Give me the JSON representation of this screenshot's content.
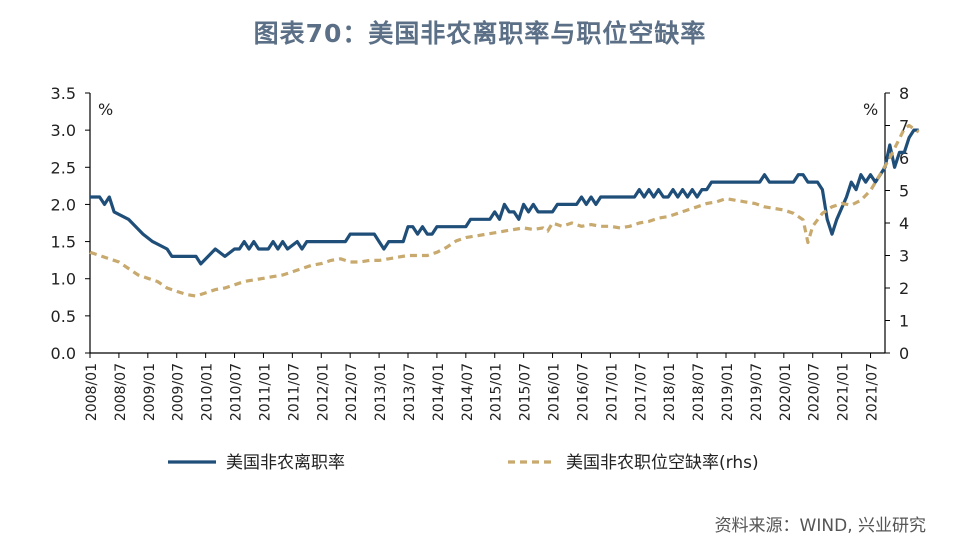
{
  "title": "图表70：美国非农离职率与职位空缺率",
  "source": "资料来源：WIND, 兴业研究",
  "colors": {
    "series1": "#1f4e79",
    "series2": "#c8a96e",
    "axis": "#000000",
    "title": "#5b6f86"
  },
  "chart_data": {
    "type": "line",
    "title": "图表70：美国非农离职率与职位空缺率",
    "left_unit": "%",
    "right_unit": "%",
    "ylim_left": [
      0,
      3.5
    ],
    "yticks_left": [
      "0.0",
      "0.5",
      "1.0",
      "1.5",
      "2.0",
      "2.5",
      "3.0",
      "3.5"
    ],
    "ylim_right": [
      0,
      8
    ],
    "yticks_right": [
      "0",
      "1",
      "2",
      "3",
      "4",
      "5",
      "6",
      "7",
      "8"
    ],
    "x_start": "2008/01",
    "x_end": "2021/10",
    "xticks": [
      "2008/01",
      "2008/07",
      "2009/01",
      "2009/07",
      "2010/01",
      "2010/07",
      "2011/01",
      "2011/07",
      "2012/01",
      "2012/07",
      "2013/01",
      "2013/07",
      "2014/01",
      "2014/07",
      "2015/01",
      "2015/07",
      "2016/01",
      "2016/07",
      "2017/01",
      "2017/07",
      "2018/01",
      "2018/07",
      "2019/01",
      "2019/07",
      "2020/01",
      "2020/07",
      "2021/01",
      "2021/07"
    ],
    "grid": false,
    "legend_position": "bottom",
    "series": [
      {
        "name": "美国非农离职率",
        "axis": "left",
        "style": "solid",
        "points": [
          [
            "2008/01",
            2.1
          ],
          [
            "2008/03",
            2.1
          ],
          [
            "2008/04",
            2.0
          ],
          [
            "2008/05",
            2.1
          ],
          [
            "2008/06",
            1.9
          ],
          [
            "2008/09",
            1.8
          ],
          [
            "2008/12",
            1.6
          ],
          [
            "2009/02",
            1.5
          ],
          [
            "2009/05",
            1.4
          ],
          [
            "2009/06",
            1.3
          ],
          [
            "2009/11",
            1.3
          ],
          [
            "2009/12",
            1.2
          ],
          [
            "2010/03",
            1.4
          ],
          [
            "2010/05",
            1.3
          ],
          [
            "2010/07",
            1.4
          ],
          [
            "2010/08",
            1.4
          ],
          [
            "2010/09",
            1.5
          ],
          [
            "2010/10",
            1.4
          ],
          [
            "2010/11",
            1.5
          ],
          [
            "2010/12",
            1.4
          ],
          [
            "2011/02",
            1.4
          ],
          [
            "2011/03",
            1.5
          ],
          [
            "2011/04",
            1.4
          ],
          [
            "2011/05",
            1.5
          ],
          [
            "2011/06",
            1.4
          ],
          [
            "2011/08",
            1.5
          ],
          [
            "2011/09",
            1.4
          ],
          [
            "2011/10",
            1.5
          ],
          [
            "2012/06",
            1.5
          ],
          [
            "2012/07",
            1.6
          ],
          [
            "2012/12",
            1.6
          ],
          [
            "2013/01",
            1.5
          ],
          [
            "2013/02",
            1.4
          ],
          [
            "2013/03",
            1.5
          ],
          [
            "2013/06",
            1.5
          ],
          [
            "2013/07",
            1.7
          ],
          [
            "2013/08",
            1.7
          ],
          [
            "2013/09",
            1.6
          ],
          [
            "2013/10",
            1.7
          ],
          [
            "2013/11",
            1.6
          ],
          [
            "2013/12",
            1.6
          ],
          [
            "2014/01",
            1.7
          ],
          [
            "2014/07",
            1.7
          ],
          [
            "2014/08",
            1.8
          ],
          [
            "2014/12",
            1.8
          ],
          [
            "2015/01",
            1.9
          ],
          [
            "2015/02",
            1.8
          ],
          [
            "2015/03",
            2.0
          ],
          [
            "2015/04",
            1.9
          ],
          [
            "2015/05",
            1.9
          ],
          [
            "2015/06",
            1.8
          ],
          [
            "2015/07",
            2.0
          ],
          [
            "2015/08",
            1.9
          ],
          [
            "2015/09",
            2.0
          ],
          [
            "2015/10",
            1.9
          ],
          [
            "2015/11",
            1.9
          ],
          [
            "2016/01",
            1.9
          ],
          [
            "2016/02",
            2.0
          ],
          [
            "2016/06",
            2.0
          ],
          [
            "2016/07",
            2.1
          ],
          [
            "2016/08",
            2.0
          ],
          [
            "2016/09",
            2.1
          ],
          [
            "2016/10",
            2.0
          ],
          [
            "2016/11",
            2.1
          ],
          [
            "2017/06",
            2.1
          ],
          [
            "2017/07",
            2.2
          ],
          [
            "2017/08",
            2.1
          ],
          [
            "2017/09",
            2.2
          ],
          [
            "2017/10",
            2.1
          ],
          [
            "2017/11",
            2.2
          ],
          [
            "2017/12",
            2.1
          ],
          [
            "2018/01",
            2.1
          ],
          [
            "2018/02",
            2.2
          ],
          [
            "2018/03",
            2.1
          ],
          [
            "2018/04",
            2.2
          ],
          [
            "2018/05",
            2.1
          ],
          [
            "2018/06",
            2.2
          ],
          [
            "2018/07",
            2.1
          ],
          [
            "2018/08",
            2.2
          ],
          [
            "2018/09",
            2.2
          ],
          [
            "2018/10",
            2.3
          ],
          [
            "2019/08",
            2.3
          ],
          [
            "2019/09",
            2.4
          ],
          [
            "2019/10",
            2.3
          ],
          [
            "2020/03",
            2.3
          ],
          [
            "2020/04",
            2.4
          ],
          [
            "2020/05",
            2.4
          ],
          [
            "2020/06",
            2.3
          ],
          [
            "2020/08",
            2.3
          ],
          [
            "2020/09",
            2.2
          ],
          [
            "2020/10",
            1.8
          ],
          [
            "2020/11",
            1.6
          ],
          [
            "2020/12",
            1.8
          ],
          [
            "2021/02",
            2.1
          ],
          [
            "2021/03",
            2.3
          ],
          [
            "2021/04",
            2.2
          ],
          [
            "2021/05",
            2.4
          ],
          [
            "2021/06",
            2.3
          ],
          [
            "2021/07",
            2.4
          ],
          [
            "2021/08",
            2.3
          ],
          [
            "2021/09",
            2.4
          ],
          [
            "2021/10",
            2.5
          ],
          [
            "2021/11",
            2.8
          ],
          [
            "2021/12",
            2.5
          ],
          [
            "2022/01",
            2.7
          ],
          [
            "2022/02",
            2.7
          ],
          [
            "2022/03",
            2.9
          ],
          [
            "2022/04",
            3.0
          ],
          [
            "2022/05",
            3.0
          ]
        ]
      },
      {
        "name": "美国非农职位空缺率(rhs)",
        "axis": "right",
        "style": "dashed",
        "points": [
          [
            "2008/01",
            3.1
          ],
          [
            "2008/03",
            3.0
          ],
          [
            "2008/05",
            2.9
          ],
          [
            "2008/07",
            2.8
          ],
          [
            "2008/09",
            2.6
          ],
          [
            "2008/11",
            2.4
          ],
          [
            "2009/01",
            2.3
          ],
          [
            "2009/03",
            2.2
          ],
          [
            "2009/05",
            2.0
          ],
          [
            "2009/07",
            1.9
          ],
          [
            "2009/09",
            1.8
          ],
          [
            "2009/11",
            1.75
          ],
          [
            "2010/01",
            1.85
          ],
          [
            "2010/03",
            1.95
          ],
          [
            "2010/05",
            2.0
          ],
          [
            "2010/07",
            2.1
          ],
          [
            "2010/09",
            2.2
          ],
          [
            "2010/11",
            2.25
          ],
          [
            "2011/01",
            2.3
          ],
          [
            "2011/03",
            2.35
          ],
          [
            "2011/05",
            2.4
          ],
          [
            "2011/07",
            2.5
          ],
          [
            "2011/09",
            2.6
          ],
          [
            "2011/11",
            2.7
          ],
          [
            "2012/01",
            2.75
          ],
          [
            "2012/03",
            2.85
          ],
          [
            "2012/05",
            2.9
          ],
          [
            "2012/07",
            2.8
          ],
          [
            "2012/09",
            2.8
          ],
          [
            "2012/11",
            2.85
          ],
          [
            "2013/01",
            2.85
          ],
          [
            "2013/03",
            2.9
          ],
          [
            "2013/05",
            2.95
          ],
          [
            "2013/07",
            3.0
          ],
          [
            "2013/09",
            3.0
          ],
          [
            "2013/11",
            3.0
          ],
          [
            "2014/01",
            3.1
          ],
          [
            "2014/03",
            3.25
          ],
          [
            "2014/05",
            3.45
          ],
          [
            "2014/07",
            3.55
          ],
          [
            "2014/09",
            3.6
          ],
          [
            "2014/11",
            3.65
          ],
          [
            "2015/01",
            3.7
          ],
          [
            "2015/03",
            3.75
          ],
          [
            "2015/05",
            3.8
          ],
          [
            "2015/07",
            3.85
          ],
          [
            "2015/09",
            3.8
          ],
          [
            "2015/11",
            3.85
          ],
          [
            "2015/12",
            3.75
          ],
          [
            "2016/01",
            4.0
          ],
          [
            "2016/03",
            3.9
          ],
          [
            "2016/05",
            4.0
          ],
          [
            "2016/07",
            3.9
          ],
          [
            "2016/09",
            3.95
          ],
          [
            "2016/11",
            3.9
          ],
          [
            "2017/01",
            3.9
          ],
          [
            "2017/03",
            3.85
          ],
          [
            "2017/05",
            3.9
          ],
          [
            "2017/07",
            4.0
          ],
          [
            "2017/09",
            4.05
          ],
          [
            "2017/11",
            4.15
          ],
          [
            "2018/01",
            4.2
          ],
          [
            "2018/03",
            4.3
          ],
          [
            "2018/05",
            4.4
          ],
          [
            "2018/07",
            4.5
          ],
          [
            "2018/09",
            4.6
          ],
          [
            "2018/11",
            4.65
          ],
          [
            "2019/01",
            4.75
          ],
          [
            "2019/03",
            4.7
          ],
          [
            "2019/05",
            4.65
          ],
          [
            "2019/07",
            4.6
          ],
          [
            "2019/09",
            4.5
          ],
          [
            "2019/11",
            4.45
          ],
          [
            "2020/01",
            4.4
          ],
          [
            "2020/03",
            4.3
          ],
          [
            "2020/05",
            4.1
          ],
          [
            "2020/06",
            3.4
          ],
          [
            "2020/07",
            3.9
          ],
          [
            "2020/09",
            4.3
          ],
          [
            "2020/11",
            4.5
          ],
          [
            "2021/01",
            4.6
          ],
          [
            "2021/03",
            4.55
          ],
          [
            "2021/05",
            4.7
          ],
          [
            "2021/07",
            5.0
          ],
          [
            "2021/09",
            5.5
          ],
          [
            "2021/11",
            6.0
          ],
          [
            "2021/12",
            6.3
          ],
          [
            "2022/01",
            6.6
          ],
          [
            "2022/02",
            6.9
          ],
          [
            "2022/03",
            7.0
          ],
          [
            "2022/04",
            6.9
          ],
          [
            "2022/05",
            6.8
          ]
        ]
      }
    ]
  }
}
